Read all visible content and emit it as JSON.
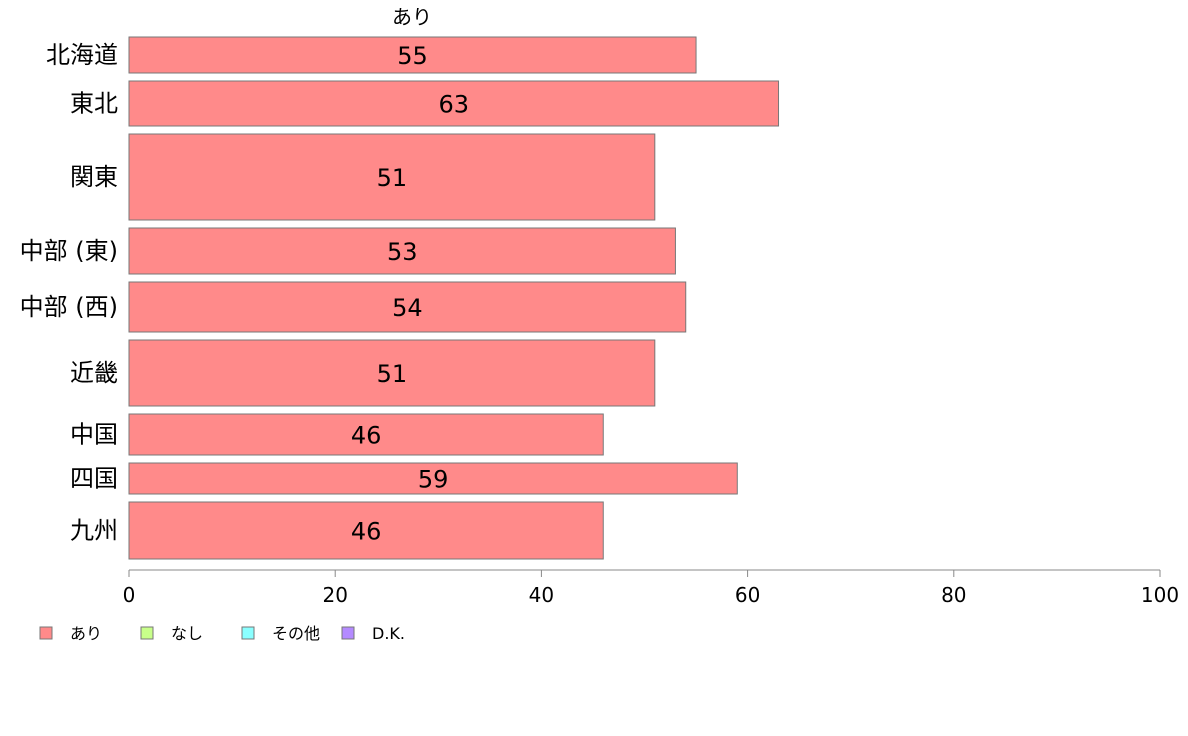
{
  "chart_data": {
    "type": "bar",
    "orientation": "horizontal",
    "title": "あり",
    "categories": [
      "北海道",
      "東北",
      "関東",
      "中部 (東)",
      "中部 (西)",
      "近畿",
      "中国",
      "四国",
      "九州"
    ],
    "series": [
      {
        "name": "あり",
        "color": "#ff8a8a",
        "values": [
          55,
          63,
          51,
          53,
          54,
          51,
          46,
          59,
          46
        ],
        "value_labels": [
          "55",
          "63",
          "51",
          "53",
          "54",
          "51",
          "46",
          "59",
          "46"
        ]
      }
    ],
    "xlim": [
      0,
      100
    ],
    "xticks": [
      0,
      20,
      40,
      60,
      80,
      100
    ],
    "xtick_labels": [
      "0",
      "20",
      "40",
      "60",
      "80",
      "100"
    ],
    "grid": false,
    "legend_position": "bottom-left",
    "legend": [
      {
        "label": "あり",
        "color": "#ff8a8a"
      },
      {
        "label": "なし",
        "color": "#c8ff8a"
      },
      {
        "label": "その他",
        "color": "#8affff"
      },
      {
        "label": "D.K.",
        "color": "#b48aff"
      }
    ]
  }
}
